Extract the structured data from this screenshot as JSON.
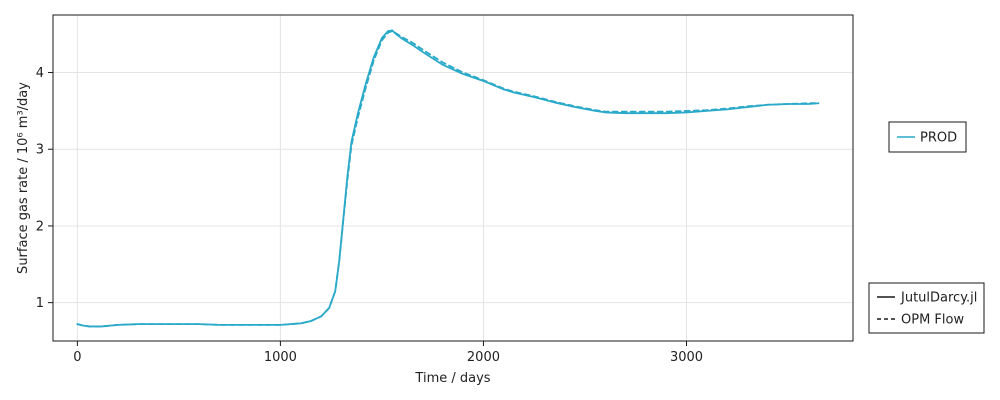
{
  "chart_data": {
    "type": "line",
    "xlabel": "Time / days",
    "ylabel": "Surface gas rate / 10⁶ m³/day",
    "xlim": [
      -120,
      3820
    ],
    "ylim": [
      0.5,
      4.75
    ],
    "xticks": [
      "0",
      "1000",
      "2000",
      "3000"
    ],
    "yticks": [
      "1",
      "2",
      "3",
      "4"
    ],
    "grid": true,
    "series_color": "#2aa9c9",
    "legend_wells": {
      "placement": "right",
      "entries": [
        "PROD"
      ]
    },
    "legend_sources": {
      "placement": "bottom-right",
      "entries": [
        "JutulDarcy.jl",
        "OPM Flow"
      ]
    },
    "series": [
      {
        "name": "PROD",
        "source": "JutulDarcy.jl",
        "linestyle": "solid",
        "x": [
          0,
          30,
          60,
          120,
          200,
          300,
          400,
          500,
          600,
          700,
          800,
          900,
          1000,
          1050,
          1100,
          1150,
          1200,
          1240,
          1270,
          1290,
          1310,
          1330,
          1350,
          1380,
          1420,
          1460,
          1500,
          1530,
          1550,
          1570,
          1600,
          1650,
          1700,
          1800,
          1900,
          2000,
          2100,
          2150,
          2250,
          2350,
          2450,
          2550,
          2600,
          2700,
          2800,
          2900,
          3000,
          3100,
          3200,
          3300,
          3400,
          3500,
          3600,
          3650
        ],
        "y": [
          0.72,
          0.7,
          0.69,
          0.69,
          0.71,
          0.72,
          0.72,
          0.72,
          0.72,
          0.71,
          0.71,
          0.71,
          0.71,
          0.72,
          0.73,
          0.76,
          0.82,
          0.93,
          1.15,
          1.55,
          2.1,
          2.65,
          3.1,
          3.45,
          3.85,
          4.2,
          4.45,
          4.54,
          4.55,
          4.5,
          4.44,
          4.36,
          4.27,
          4.1,
          3.98,
          3.89,
          3.78,
          3.74,
          3.68,
          3.61,
          3.55,
          3.5,
          3.48,
          3.47,
          3.47,
          3.47,
          3.48,
          3.5,
          3.52,
          3.55,
          3.58,
          3.59,
          3.59,
          3.6
        ]
      },
      {
        "name": "PROD",
        "source": "OPM Flow",
        "linestyle": "dashed",
        "x": [
          0,
          30,
          60,
          120,
          200,
          300,
          400,
          500,
          600,
          700,
          800,
          900,
          1000,
          1050,
          1100,
          1150,
          1200,
          1240,
          1270,
          1290,
          1310,
          1330,
          1350,
          1380,
          1420,
          1460,
          1500,
          1530,
          1550,
          1570,
          1600,
          1650,
          1700,
          1800,
          1900,
          2000,
          2100,
          2150,
          2250,
          2350,
          2450,
          2550,
          2600,
          2700,
          2800,
          2900,
          3000,
          3100,
          3200,
          3300,
          3400,
          3500,
          3600,
          3650
        ],
        "y": [
          0.72,
          0.7,
          0.69,
          0.69,
          0.71,
          0.72,
          0.72,
          0.72,
          0.72,
          0.71,
          0.71,
          0.71,
          0.71,
          0.72,
          0.73,
          0.76,
          0.82,
          0.93,
          1.15,
          1.55,
          2.08,
          2.6,
          3.05,
          3.4,
          3.8,
          4.16,
          4.42,
          4.52,
          4.54,
          4.51,
          4.46,
          4.39,
          4.3,
          4.13,
          4.0,
          3.9,
          3.79,
          3.75,
          3.69,
          3.62,
          3.56,
          3.51,
          3.49,
          3.49,
          3.49,
          3.49,
          3.5,
          3.51,
          3.53,
          3.56,
          3.58,
          3.59,
          3.6,
          3.6
        ]
      }
    ]
  }
}
